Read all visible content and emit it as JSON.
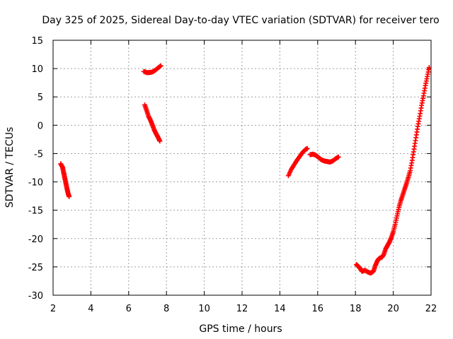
{
  "chart_data": {
    "type": "scatter",
    "title": "Day 325 of 2025, Sidereal Day-to-day VTEC variation (SDTVAR) for receiver tero",
    "xlabel": "GPS time / hours",
    "ylabel": "SDTVAR / TECUs",
    "xlim": [
      2,
      22
    ],
    "ylim": [
      -30,
      15
    ],
    "xticks": [
      2,
      4,
      6,
      8,
      10,
      12,
      14,
      16,
      18,
      20,
      22
    ],
    "yticks": [
      -30,
      -25,
      -20,
      -15,
      -10,
      -5,
      0,
      5,
      10,
      15
    ],
    "grid": true,
    "marker": "plus",
    "series_color": "#ff0000",
    "segments": [
      {
        "name": "seg1",
        "points": [
          [
            2.4,
            -6.8
          ],
          [
            2.5,
            -7.4
          ],
          [
            2.55,
            -8.2
          ],
          [
            2.6,
            -9.0
          ],
          [
            2.65,
            -9.8
          ],
          [
            2.7,
            -10.6
          ],
          [
            2.75,
            -11.4
          ],
          [
            2.8,
            -12.1
          ],
          [
            2.85,
            -12.6
          ]
        ]
      },
      {
        "name": "seg2",
        "points": [
          [
            6.8,
            9.5
          ],
          [
            6.95,
            9.3
          ],
          [
            7.1,
            9.3
          ],
          [
            7.25,
            9.4
          ],
          [
            7.4,
            9.7
          ],
          [
            7.55,
            10.1
          ],
          [
            7.7,
            10.5
          ]
        ]
      },
      {
        "name": "seg3",
        "points": [
          [
            6.85,
            3.6
          ],
          [
            6.95,
            2.6
          ],
          [
            7.05,
            1.6
          ],
          [
            7.15,
            0.9
          ],
          [
            7.25,
            0.1
          ],
          [
            7.35,
            -0.8
          ],
          [
            7.45,
            -1.5
          ],
          [
            7.55,
            -2.1
          ],
          [
            7.65,
            -2.8
          ]
        ]
      },
      {
        "name": "seg4",
        "points": [
          [
            14.45,
            -8.9
          ],
          [
            14.6,
            -7.8
          ],
          [
            14.75,
            -7.0
          ],
          [
            14.9,
            -6.2
          ],
          [
            15.05,
            -5.5
          ],
          [
            15.2,
            -4.8
          ],
          [
            15.35,
            -4.3
          ],
          [
            15.45,
            -4.1
          ]
        ]
      },
      {
        "name": "seg5",
        "points": [
          [
            15.6,
            -5.2
          ],
          [
            15.75,
            -5.1
          ],
          [
            15.9,
            -5.3
          ],
          [
            16.05,
            -5.7
          ],
          [
            16.2,
            -6.1
          ],
          [
            16.35,
            -6.3
          ],
          [
            16.5,
            -6.4
          ],
          [
            16.65,
            -6.5
          ],
          [
            16.8,
            -6.3
          ],
          [
            16.95,
            -5.9
          ],
          [
            17.1,
            -5.6
          ]
        ]
      },
      {
        "name": "seg6",
        "points": [
          [
            18.05,
            -24.6
          ],
          [
            18.15,
            -24.9
          ],
          [
            18.25,
            -25.3
          ],
          [
            18.35,
            -25.8
          ],
          [
            18.5,
            -25.6
          ],
          [
            18.65,
            -25.9
          ],
          [
            18.8,
            -26.1
          ],
          [
            18.95,
            -25.8
          ],
          [
            19.05,
            -24.8
          ],
          [
            19.15,
            -24.0
          ],
          [
            19.25,
            -23.5
          ],
          [
            19.4,
            -23.3
          ],
          [
            19.5,
            -22.8
          ],
          [
            19.6,
            -21.8
          ],
          [
            19.7,
            -21.2
          ],
          [
            19.8,
            -20.6
          ],
          [
            19.9,
            -19.8
          ],
          [
            20.0,
            -18.8
          ],
          [
            20.1,
            -17.5
          ],
          [
            20.2,
            -16.0
          ],
          [
            20.3,
            -14.5
          ],
          [
            20.4,
            -13.3
          ],
          [
            20.5,
            -12.3
          ],
          [
            20.6,
            -11.3
          ],
          [
            20.7,
            -10.3
          ],
          [
            20.8,
            -9.2
          ],
          [
            20.9,
            -8.0
          ],
          [
            21.0,
            -6.2
          ],
          [
            21.1,
            -4.2
          ],
          [
            21.2,
            -2.2
          ],
          [
            21.3,
            -0.2
          ],
          [
            21.4,
            1.6
          ],
          [
            21.5,
            3.5
          ],
          [
            21.6,
            5.2
          ],
          [
            21.7,
            7.0
          ],
          [
            21.8,
            8.6
          ],
          [
            21.9,
            10.2
          ]
        ]
      }
    ]
  }
}
